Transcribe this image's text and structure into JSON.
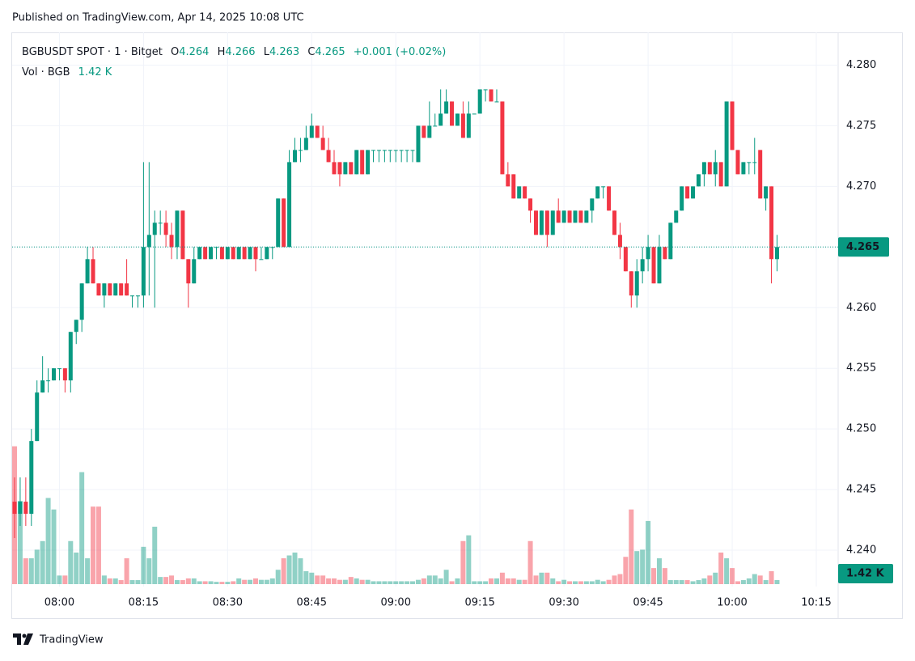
{
  "header": {
    "published": "Published on TradingView.com, Apr 14, 2025 10:08 UTC"
  },
  "footer": {
    "brand": "TradingView"
  },
  "chart_data": {
    "type": "candlestick",
    "symbol": "BGBUSDT SPOT · 1 · Bitget",
    "ohlc_labels": [
      "O",
      "H",
      "L",
      "C"
    ],
    "ohlc_values": [
      4.264,
      4.266,
      4.263,
      4.265
    ],
    "change": "+0.001 (+0.02%)",
    "volume_title": "Vol · BGB",
    "last_volume": {
      "value": 1.42,
      "label": "1.42 K"
    },
    "last_price": 4.265,
    "up_color": "#089981",
    "down_color": "#f23645",
    "grid": true,
    "ylim": [
      4.237,
      4.2827
    ],
    "yticks": [
      {
        "value": 4.24,
        "label": "4.240"
      },
      4.245,
      {
        "value": 4.25,
        "label": "4.250"
      },
      4.255,
      {
        "value": 4.26,
        "label": "4.260"
      },
      4.265,
      {
        "value": 4.27,
        "label": "4.270"
      },
      4.275,
      {
        "value": 4.28,
        "label": "4.280"
      }
    ],
    "vlim": [
      0,
      60
    ],
    "xticks": [
      "08:00",
      "08:15",
      "08:30",
      "08:45",
      "09:00",
      "09:15",
      "09:30",
      "09:45",
      "10:00",
      "10:15"
    ],
    "x": [
      "07:52",
      "07:53",
      "07:54",
      "07:55",
      "07:56",
      "07:57",
      "07:58",
      "07:59",
      "08:00",
      "08:01",
      "08:02",
      "08:03",
      "08:04",
      "08:05",
      "08:06",
      "08:07",
      "08:08",
      "08:09",
      "08:10",
      "08:11",
      "08:12",
      "08:13",
      "08:14",
      "08:15",
      "08:16",
      "08:17",
      "08:18",
      "08:19",
      "08:20",
      "08:21",
      "08:22",
      "08:23",
      "08:24",
      "08:25",
      "08:26",
      "08:27",
      "08:28",
      "08:29",
      "08:30",
      "08:31",
      "08:32",
      "08:33",
      "08:34",
      "08:35",
      "08:36",
      "08:37",
      "08:38",
      "08:39",
      "08:40",
      "08:41",
      "08:42",
      "08:43",
      "08:44",
      "08:45",
      "08:46",
      "08:47",
      "08:48",
      "08:49",
      "08:50",
      "08:51",
      "08:52",
      "08:53",
      "08:54",
      "08:55",
      "08:56",
      "08:57",
      "08:58",
      "08:59",
      "09:00",
      "09:01",
      "09:02",
      "09:03",
      "09:04",
      "09:05",
      "09:06",
      "09:07",
      "09:08",
      "09:09",
      "09:10",
      "09:11",
      "09:12",
      "09:13",
      "09:14",
      "09:15",
      "09:16",
      "09:17",
      "09:18",
      "09:19",
      "09:20",
      "09:21",
      "09:22",
      "09:23",
      "09:24",
      "09:25",
      "09:26",
      "09:27",
      "09:28",
      "09:29",
      "09:30",
      "09:31",
      "09:32",
      "09:33",
      "09:34",
      "09:35",
      "09:36",
      "09:37",
      "09:38",
      "09:39",
      "09:40",
      "09:41",
      "09:42",
      "09:43",
      "09:44",
      "09:45",
      "09:46",
      "09:47",
      "09:48",
      "09:49",
      "09:50",
      "09:51",
      "09:52",
      "09:53",
      "09:54",
      "09:55",
      "09:56",
      "09:57",
      "09:58",
      "09:59",
      "10:00",
      "10:01",
      "10:02",
      "10:03",
      "10:04",
      "10:05",
      "10:06",
      "10:07",
      "10:08"
    ],
    "open": [
      4.244,
      4.243,
      4.244,
      4.243,
      4.249,
      4.253,
      4.254,
      4.254,
      4.255,
      4.255,
      4.254,
      4.258,
      4.259,
      4.262,
      4.264,
      4.262,
      4.261,
      4.262,
      4.261,
      4.262,
      4.262,
      4.261,
      4.261,
      4.261,
      4.265,
      4.266,
      4.267,
      4.267,
      4.266,
      4.265,
      4.268,
      4.264,
      4.262,
      4.264,
      4.265,
      4.264,
      4.265,
      4.265,
      4.264,
      4.265,
      4.264,
      4.265,
      4.264,
      4.265,
      4.264,
      4.264,
      4.265,
      4.265,
      4.269,
      4.265,
      4.272,
      4.273,
      4.273,
      4.274,
      4.275,
      4.274,
      4.273,
      4.272,
      4.272,
      4.271,
      4.272,
      4.271,
      4.273,
      4.271,
      4.273,
      4.273,
      4.273,
      4.273,
      4.273,
      4.273,
      4.273,
      4.273,
      4.272,
      4.275,
      4.274,
      4.275,
      4.275,
      4.276,
      4.277,
      4.275,
      4.276,
      4.274,
      4.276,
      4.276,
      4.278,
      4.278,
      4.277,
      4.277,
      4.271,
      4.271,
      4.269,
      4.27,
      4.269,
      4.268,
      4.266,
      4.268,
      4.266,
      4.268,
      4.267,
      4.268,
      4.267,
      4.268,
      4.267,
      4.268,
      4.269,
      4.27,
      4.27,
      4.268,
      4.266,
      4.265,
      4.263,
      4.261,
      4.263,
      4.264,
      4.265,
      4.262,
      4.265,
      4.264,
      4.267,
      4.268,
      4.27,
      4.269,
      4.27,
      4.271,
      4.272,
      4.271,
      4.272,
      4.27,
      4.277,
      4.273,
      4.271,
      4.272,
      4.272,
      4.273,
      4.269,
      4.27,
      4.264
    ],
    "high": [
      4.246,
      4.246,
      4.246,
      4.25,
      4.254,
      4.256,
      4.255,
      4.255,
      4.255,
      4.255,
      4.258,
      4.259,
      4.262,
      4.265,
      4.265,
      4.262,
      4.262,
      4.262,
      4.262,
      4.262,
      4.264,
      4.261,
      4.261,
      4.272,
      4.272,
      4.268,
      4.268,
      4.268,
      4.267,
      4.268,
      4.268,
      4.264,
      4.265,
      4.265,
      4.265,
      4.265,
      4.265,
      4.265,
      4.265,
      4.265,
      4.265,
      4.265,
      4.265,
      4.265,
      4.265,
      4.265,
      4.265,
      4.269,
      4.269,
      4.273,
      4.274,
      4.274,
      4.275,
      4.276,
      4.275,
      4.275,
      4.274,
      4.273,
      4.272,
      4.272,
      4.272,
      4.273,
      4.273,
      4.273,
      4.273,
      4.273,
      4.273,
      4.273,
      4.273,
      4.273,
      4.273,
      4.273,
      4.275,
      4.275,
      4.277,
      4.276,
      4.278,
      4.278,
      4.277,
      4.276,
      4.277,
      4.277,
      4.276,
      4.278,
      4.278,
      4.278,
      4.278,
      4.277,
      4.272,
      4.271,
      4.27,
      4.27,
      4.269,
      4.268,
      4.268,
      4.268,
      4.268,
      4.269,
      4.268,
      4.268,
      4.268,
      4.268,
      4.268,
      4.269,
      4.27,
      4.27,
      4.27,
      4.268,
      4.267,
      4.265,
      4.263,
      4.264,
      4.265,
      4.266,
      4.265,
      4.266,
      4.265,
      4.267,
      4.268,
      4.27,
      4.27,
      4.27,
      4.271,
      4.272,
      4.272,
      4.273,
      4.272,
      4.277,
      4.277,
      4.273,
      4.272,
      4.272,
      4.274,
      4.273,
      4.27,
      4.27,
      4.266
    ],
    "low": [
      4.241,
      4.242,
      4.242,
      4.242,
      4.249,
      4.253,
      4.253,
      4.254,
      4.254,
      4.253,
      4.253,
      4.257,
      4.258,
      4.262,
      4.262,
      4.261,
      4.26,
      4.261,
      4.261,
      4.261,
      4.261,
      4.26,
      4.26,
      4.26,
      4.261,
      4.26,
      4.266,
      4.265,
      4.264,
      4.264,
      4.264,
      4.26,
      4.262,
      4.264,
      4.264,
      4.264,
      4.264,
      4.264,
      4.264,
      4.264,
      4.264,
      4.264,
      4.264,
      4.263,
      4.264,
      4.264,
      4.264,
      4.265,
      4.265,
      4.265,
      4.272,
      4.272,
      4.273,
      4.274,
      4.274,
      4.273,
      4.272,
      4.271,
      4.27,
      4.271,
      4.271,
      4.271,
      4.271,
      4.271,
      4.272,
      4.272,
      4.272,
      4.272,
      4.272,
      4.272,
      4.272,
      4.272,
      4.272,
      4.274,
      4.274,
      4.275,
      4.275,
      4.276,
      4.275,
      4.275,
      4.274,
      4.274,
      4.276,
      4.276,
      4.277,
      4.277,
      4.277,
      4.271,
      4.27,
      4.269,
      4.269,
      4.269,
      4.267,
      4.266,
      4.266,
      4.265,
      4.266,
      4.267,
      4.267,
      4.267,
      4.267,
      4.267,
      4.267,
      4.267,
      4.269,
      4.269,
      4.268,
      4.266,
      4.264,
      4.263,
      4.26,
      4.26,
      4.262,
      4.263,
      4.262,
      4.262,
      4.264,
      4.264,
      4.267,
      4.268,
      4.269,
      4.269,
      4.27,
      4.27,
      4.271,
      4.27,
      4.27,
      4.27,
      4.273,
      4.271,
      4.271,
      4.271,
      4.271,
      4.269,
      4.268,
      4.262,
      4.263
    ],
    "close": [
      4.243,
      4.244,
      4.243,
      4.249,
      4.253,
      4.254,
      4.254,
      4.255,
      4.255,
      4.254,
      4.258,
      4.259,
      4.262,
      4.264,
      4.262,
      4.261,
      4.262,
      4.261,
      4.262,
      4.261,
      4.261,
      4.261,
      4.261,
      4.265,
      4.266,
      4.267,
      4.267,
      4.266,
      4.265,
      4.268,
      4.264,
      4.262,
      4.264,
      4.265,
      4.264,
      4.265,
      4.265,
      4.264,
      4.265,
      4.264,
      4.265,
      4.264,
      4.265,
      4.264,
      4.264,
      4.265,
      4.265,
      4.269,
      4.265,
      4.272,
      4.273,
      4.273,
      4.274,
      4.275,
      4.274,
      4.273,
      4.272,
      4.271,
      4.271,
      4.272,
      4.271,
      4.273,
      4.271,
      4.273,
      4.273,
      4.273,
      4.273,
      4.273,
      4.273,
      4.273,
      4.273,
      4.273,
      4.275,
      4.274,
      4.275,
      4.275,
      4.276,
      4.277,
      4.275,
      4.276,
      4.274,
      4.276,
      4.276,
      4.278,
      4.278,
      4.277,
      4.277,
      4.271,
      4.27,
      4.269,
      4.27,
      4.269,
      4.268,
      4.266,
      4.268,
      4.266,
      4.268,
      4.267,
      4.268,
      4.267,
      4.268,
      4.267,
      4.268,
      4.269,
      4.27,
      4.27,
      4.268,
      4.266,
      4.265,
      4.263,
      4.261,
      4.263,
      4.264,
      4.265,
      4.262,
      4.265,
      4.264,
      4.267,
      4.268,
      4.27,
      4.269,
      4.27,
      4.271,
      4.272,
      4.271,
      4.272,
      4.27,
      4.277,
      4.273,
      4.271,
      4.272,
      4.272,
      4.272,
      4.269,
      4.27,
      4.264,
      4.265
    ],
    "volume": [
      48,
      29,
      9,
      9,
      12,
      15,
      30,
      26,
      3,
      3,
      15,
      11,
      39,
      9,
      27,
      27,
      3,
      2,
      2,
      1.4,
      9,
      1.4,
      1.4,
      13,
      9,
      20,
      2.5,
      2.5,
      3,
      1.4,
      1.4,
      2,
      2,
      1,
      1,
      1,
      0.8,
      0.8,
      0.8,
      1,
      2,
      1.5,
      1.5,
      2,
      1.5,
      1.5,
      2,
      5,
      9,
      10,
      11,
      9,
      4.5,
      4,
      3,
      3,
      2,
      2,
      1.5,
      1.5,
      2.5,
      2,
      1.5,
      1.5,
      1,
      1,
      1,
      1,
      1,
      1,
      1,
      1,
      1.5,
      2,
      3,
      3,
      2,
      5,
      1,
      2,
      15,
      17,
      1,
      1,
      1,
      2,
      2,
      4,
      2,
      2,
      1.5,
      1.5,
      15,
      3,
      4,
      4,
      2,
      1,
      1.5,
      1,
      1,
      1,
      1,
      1,
      1.5,
      1,
      1.5,
      3,
      3.5,
      9.5,
      26,
      11.5,
      12,
      22,
      5.6,
      9,
      5.6,
      1.4,
      1.4,
      1.4,
      1.4,
      1,
      1.4,
      2,
      3,
      4,
      11,
      9,
      5.6,
      1,
      1.4,
      2,
      3.5,
      3,
      1.4,
      4.5,
      1.42
    ]
  }
}
